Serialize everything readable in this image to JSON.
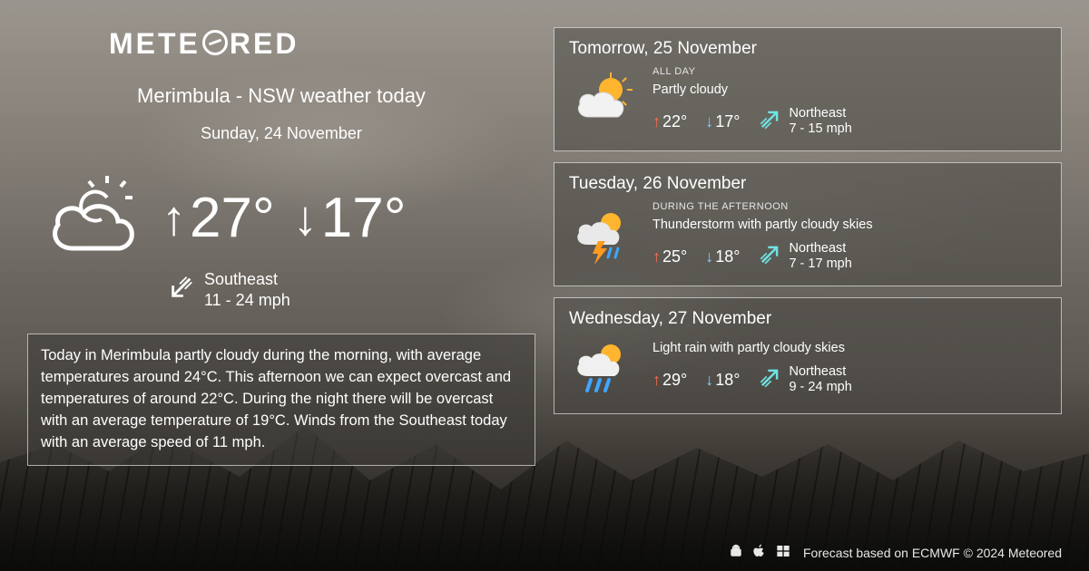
{
  "brand": "METEORED",
  "location_title": "Merimbula - NSW weather today",
  "today": {
    "date": "Sunday, 24 November",
    "icon": "partly-cloudy",
    "high": "27°",
    "low": "17°",
    "wind_dir": "Southeast",
    "wind_speed": "11 - 24 mph",
    "summary": "Today in Merimbula partly cloudy during the morning, with average temperatures around 24°C. This afternoon we can expect overcast and temperatures of around 22°C. During the night there will be overcast with an average temperature of 19°C. Winds from the Southeast today with an average speed of 11 mph."
  },
  "forecast": [
    {
      "title": "Tomorrow, 25 November",
      "period": "ALL DAY",
      "condition": "Partly cloudy",
      "icon": "partly-cloudy",
      "high": "22°",
      "low": "17°",
      "wind_dir": "Northeast",
      "wind_speed": "7 - 15 mph"
    },
    {
      "title": "Tuesday, 26 November",
      "period": "DURING THE AFTERNOON",
      "condition": "Thunderstorm with partly cloudy skies",
      "icon": "thunder",
      "high": "25°",
      "low": "18°",
      "wind_dir": "Northeast",
      "wind_speed": "7 - 17 mph"
    },
    {
      "title": "Wednesday, 27 November",
      "period": "",
      "condition": "Light rain with partly cloudy skies",
      "icon": "rain",
      "high": "29°",
      "low": "18°",
      "wind_dir": "Northeast",
      "wind_speed": "9 - 24 mph"
    }
  ],
  "footer": {
    "credit": "Forecast based on ECMWF © 2024 Meteored"
  },
  "colors": {
    "high_arrow": "#ff6a4d",
    "low_arrow": "#7fd3ff",
    "wind_arrow": "#6fe3e3",
    "card_border": "rgba(255,255,255,0.6)",
    "card_bg": "rgba(70,68,63,0.5)"
  }
}
